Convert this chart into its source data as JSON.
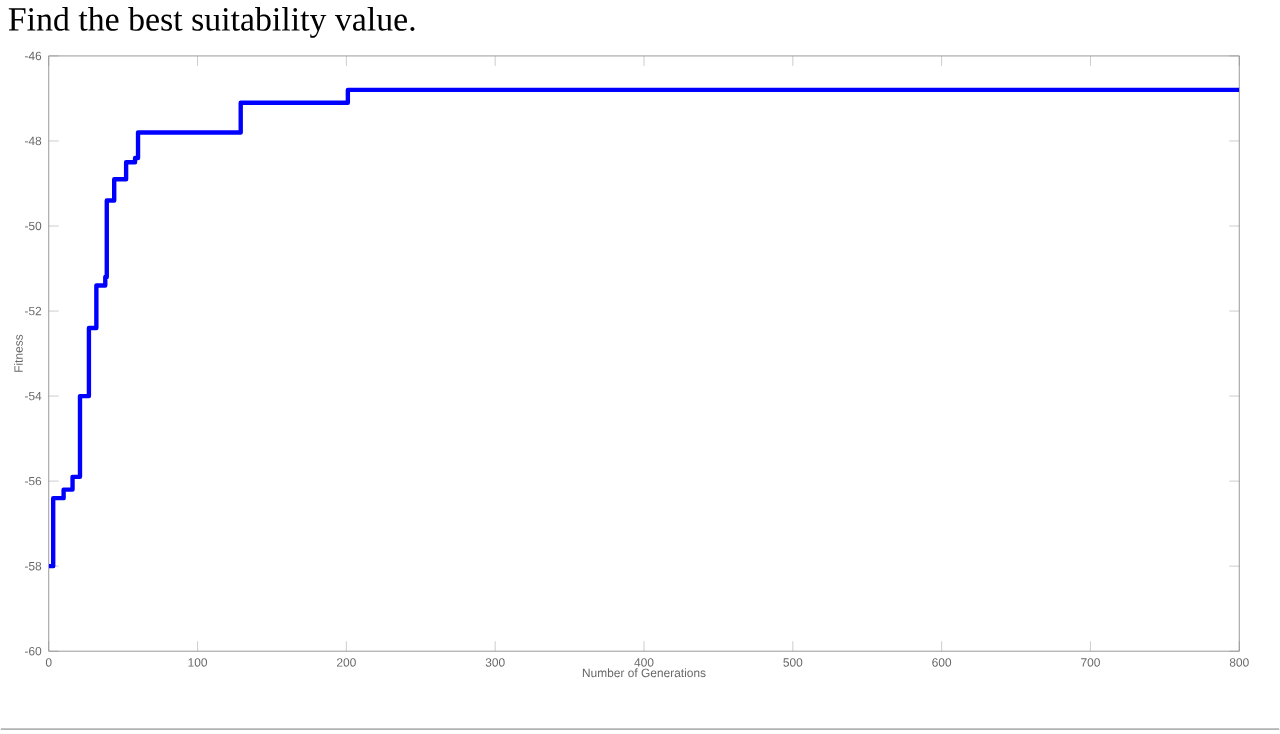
{
  "chart_data": {
    "type": "step",
    "annotations": [
      "Find the best suitability value."
    ],
    "xlabel": "Number of Generations",
    "ylabel": "Fitness",
    "x": [
      0,
      3,
      10,
      16,
      21,
      27,
      32,
      38,
      39,
      44,
      51,
      52,
      58,
      60,
      129,
      201,
      800
    ],
    "series": [
      {
        "color": "#0000ff",
        "values": [
          -58,
          -56.4,
          -56.2,
          -55.9,
          -54,
          -52.4,
          -51.4,
          -51.2,
          -49.4,
          -48.9,
          -48.9,
          -48.5,
          -48.4,
          -47.8,
          -47.1,
          -46.8,
          -46.8
        ]
      }
    ],
    "xlim": [
      0,
      800
    ],
    "xticks": [
      0,
      100,
      200,
      300,
      400,
      500,
      600,
      700,
      800
    ],
    "ylim": [
      -60,
      -46
    ],
    "yticks": [
      -60,
      -58,
      -56,
      -54,
      -52,
      -50,
      -48,
      -46
    ],
    "grid": false,
    "marker": "none",
    "line_style": "solid"
  }
}
